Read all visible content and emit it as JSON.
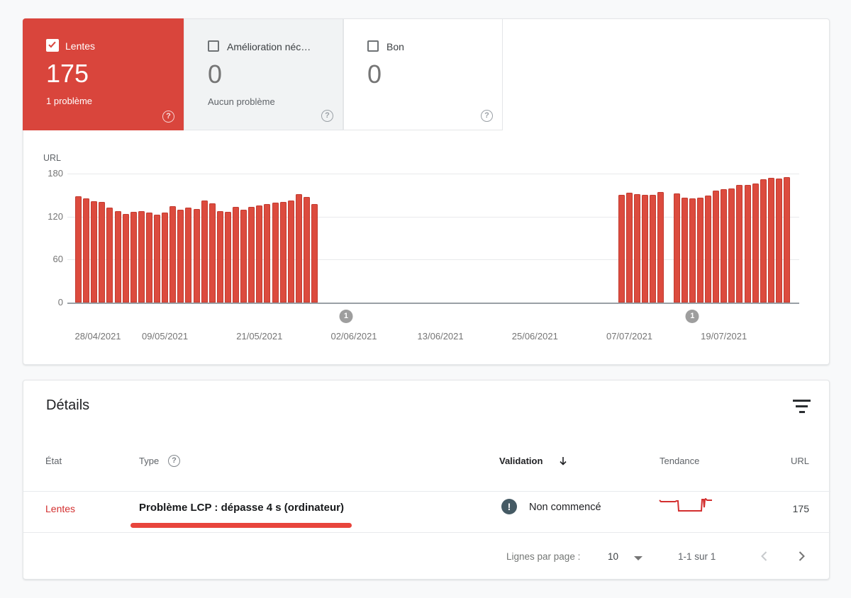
{
  "icons": {
    "help": "?",
    "exclamation": "!"
  },
  "colors": {
    "card_red": "#d9453c",
    "bar_fill": "#dc4b3e",
    "bar_edge": "#c23b30",
    "underline": "#e8453c",
    "sparkline": "#d32f2f",
    "marker_gray": "#9e9e9e",
    "validation_circle": "#455a64",
    "page_background": "#f8f9fa"
  },
  "cards": [
    {
      "label": "Lentes",
      "value": "175",
      "sub": "1 problème",
      "selected": true
    },
    {
      "label": "Amélioration néc…",
      "value": "0",
      "sub": "Aucun problème",
      "selected": false
    },
    {
      "label": "Bon",
      "value": "0",
      "sub": "",
      "selected": false
    }
  ],
  "chart_data": {
    "type": "bar",
    "title": "",
    "xlabel": "",
    "ylabel": "URL",
    "ylim": [
      0,
      180
    ],
    "yticks": [
      0,
      60,
      120,
      180
    ],
    "grid": true,
    "bar_color": "#dc4b3e",
    "x_tick_labels": [
      "28/04/2021",
      "09/05/2021",
      "21/05/2021",
      "02/06/2021",
      "13/06/2021",
      "25/06/2021",
      "07/07/2021",
      "19/07/2021"
    ],
    "x_tick_days": [
      0,
      11,
      23,
      35,
      46,
      58,
      70,
      82
    ],
    "bars": [
      [
        0,
        148
      ],
      [
        1,
        145
      ],
      [
        2,
        141
      ],
      [
        3,
        140
      ],
      [
        4,
        132
      ],
      [
        5,
        128
      ],
      [
        6,
        124
      ],
      [
        7,
        127
      ],
      [
        8,
        128
      ],
      [
        9,
        126
      ],
      [
        10,
        123
      ],
      [
        11,
        126
      ],
      [
        12,
        134
      ],
      [
        13,
        130
      ],
      [
        14,
        132
      ],
      [
        15,
        131
      ],
      [
        16,
        142
      ],
      [
        17,
        138
      ],
      [
        18,
        128
      ],
      [
        19,
        127
      ],
      [
        20,
        133
      ],
      [
        21,
        130
      ],
      [
        22,
        133
      ],
      [
        23,
        135
      ],
      [
        24,
        137
      ],
      [
        25,
        139
      ],
      [
        26,
        140
      ],
      [
        27,
        142
      ],
      [
        28,
        151
      ],
      [
        29,
        147
      ],
      [
        30,
        137
      ],
      [
        69,
        150
      ],
      [
        70,
        153
      ],
      [
        71,
        151
      ],
      [
        72,
        150
      ],
      [
        73,
        150
      ],
      [
        74,
        154
      ],
      [
        76,
        152
      ],
      [
        77,
        146
      ],
      [
        78,
        145
      ],
      [
        79,
        146
      ],
      [
        80,
        149
      ],
      [
        81,
        156
      ],
      [
        82,
        158
      ],
      [
        83,
        159
      ],
      [
        84,
        164
      ],
      [
        85,
        164
      ],
      [
        86,
        166
      ],
      [
        87,
        172
      ],
      [
        88,
        174
      ],
      [
        89,
        173
      ],
      [
        90,
        175
      ]
    ],
    "annotations": [
      {
        "day": 34,
        "label": "1"
      },
      {
        "day": 78,
        "label": "1"
      }
    ]
  },
  "details": {
    "title": "Détails",
    "columns": {
      "etat": "État",
      "type": "Type",
      "validation": "Validation",
      "tendance": "Tendance",
      "url": "URL"
    },
    "rows": [
      {
        "etat": "Lentes",
        "type": "Problème LCP : dépasse 4 s (ordinateur)",
        "validation": "Non commencé",
        "url": "175",
        "trend_points": [
          [
            1,
            3
          ],
          [
            3,
            5
          ],
          [
            5,
            5
          ],
          [
            23,
            5
          ],
          [
            25,
            4
          ],
          [
            27,
            4
          ],
          [
            28,
            18
          ],
          [
            60,
            18
          ],
          [
            61,
            2
          ],
          [
            63,
            2
          ],
          [
            64,
            13
          ],
          [
            65,
            2
          ],
          [
            66,
            1
          ],
          [
            68,
            3
          ],
          [
            75,
            3
          ]
        ]
      }
    ],
    "pagination": {
      "rows_per_page_label": "Lignes par page :",
      "rows_per_page": "10",
      "range": "1-1 sur 1"
    }
  }
}
